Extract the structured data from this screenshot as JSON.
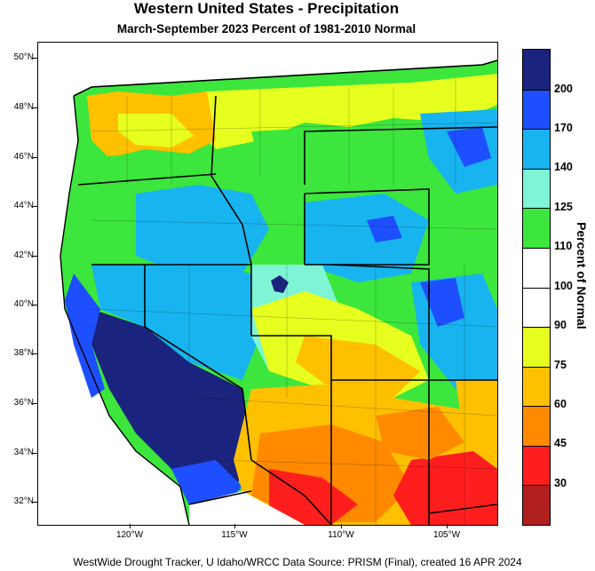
{
  "title": "Western United States - Precipitation",
  "subtitle": "March-September 2023  Percent of 1981-2010 Normal",
  "latitude_labels": [
    "50°N",
    "48°N",
    "46°N",
    "44°N",
    "42°N",
    "40°N",
    "38°N",
    "36°N",
    "34°N",
    "32°N"
  ],
  "longitude_labels": [
    "120°W",
    "115°W",
    "110°W",
    "105°W"
  ],
  "colorbar": {
    "title": "Percent of Normal",
    "labels": [
      "200",
      "170",
      "140",
      "125",
      "110",
      "100",
      "90",
      "75",
      "60",
      "45",
      "30"
    ],
    "colors": [
      "#1a237e",
      "#1e4fff",
      "#18b4f0",
      "#7ff5d5",
      "#3ce63c",
      "#ffffff",
      "#ffffff",
      "#e6ff1e",
      "#ffc000",
      "#ff8a00",
      "#ff1e1e",
      "#b01e1e"
    ]
  },
  "footer": "WestWide Drought Tracker, U Idaho/WRCC Data Source: PRISM (Final), created 16 APR 2024",
  "map_regions": [
    "Pacific Northwest coast",
    "Washington",
    "Oregon",
    "Idaho",
    "Montana",
    "Wyoming",
    "Colorado",
    "California",
    "Nevada",
    "Utah",
    "Arizona",
    "New Mexico",
    "Great Salt Lake"
  ]
}
